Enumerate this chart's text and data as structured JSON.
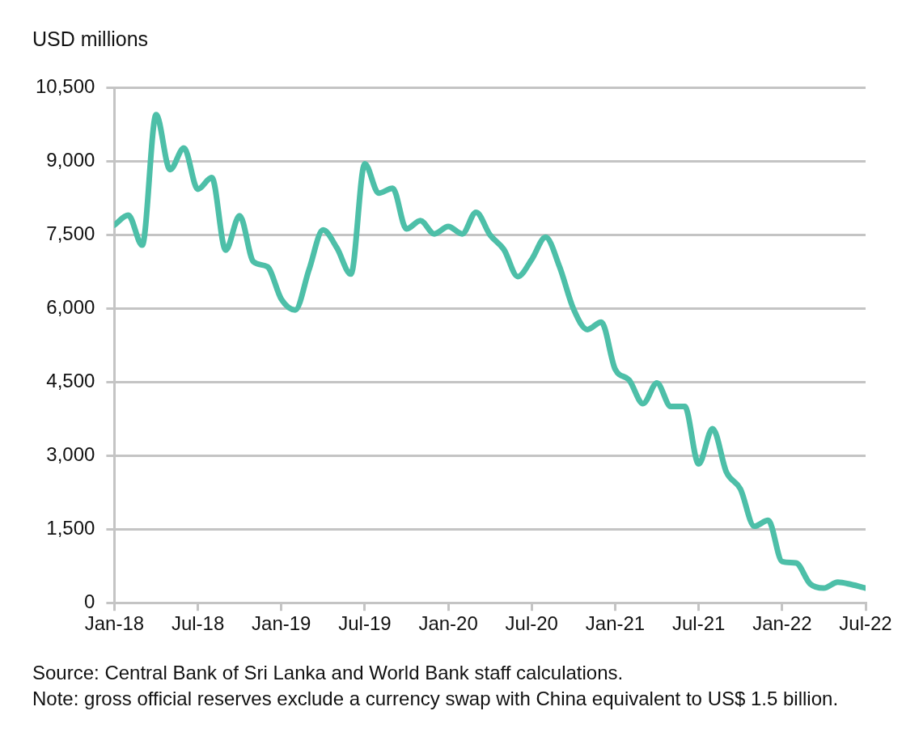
{
  "chart_data": {
    "type": "line",
    "ylabel": "USD millions",
    "x": [
      "2018-01",
      "2018-02",
      "2018-03",
      "2018-04",
      "2018-05",
      "2018-06",
      "2018-07",
      "2018-08",
      "2018-09",
      "2018-10",
      "2018-11",
      "2018-12",
      "2019-01",
      "2019-02",
      "2019-03",
      "2019-04",
      "2019-05",
      "2019-06",
      "2019-07",
      "2019-08",
      "2019-09",
      "2019-10",
      "2019-11",
      "2019-12",
      "2020-01",
      "2020-02",
      "2020-03",
      "2020-04",
      "2020-05",
      "2020-06",
      "2020-07",
      "2020-08",
      "2020-09",
      "2020-10",
      "2020-11",
      "2020-12",
      "2021-01",
      "2021-02",
      "2021-03",
      "2021-04",
      "2021-05",
      "2021-06",
      "2021-07",
      "2021-08",
      "2021-09",
      "2021-10",
      "2021-11",
      "2021-12",
      "2022-01",
      "2022-02",
      "2022-03",
      "2022-04",
      "2022-05",
      "2022-06",
      "2022-07"
    ],
    "series": [
      {
        "color": "#4dbfa8",
        "values": [
          7700,
          7900,
          7290,
          9950,
          8830,
          9270,
          8430,
          8670,
          7190,
          7890,
          6950,
          6850,
          6190,
          5970,
          6800,
          7600,
          7230,
          6700,
          8950,
          8350,
          8450,
          7620,
          7790,
          7520,
          7670,
          7520,
          7960,
          7500,
          7200,
          6650,
          7000,
          7450,
          6850,
          5990,
          5570,
          5720,
          4760,
          4540,
          4060,
          4480,
          4000,
          4000,
          2830,
          3550,
          2660,
          2320,
          1560,
          1680,
          840,
          810,
          390,
          300,
          420,
          370,
          300
        ]
      }
    ],
    "xlim": [
      "2018-01",
      "2022-07"
    ],
    "xticks": [
      {
        "value": "2018-01",
        "label": "Jan-18"
      },
      {
        "value": "2018-07",
        "label": "Jul-18"
      },
      {
        "value": "2019-01",
        "label": "Jan-19"
      },
      {
        "value": "2019-07",
        "label": "Jul-19"
      },
      {
        "value": "2020-01",
        "label": "Jan-20"
      },
      {
        "value": "2020-07",
        "label": "Jul-20"
      },
      {
        "value": "2021-01",
        "label": "Jan-21"
      },
      {
        "value": "2021-07",
        "label": "Jul-21"
      },
      {
        "value": "2022-01",
        "label": "Jan-22"
      },
      {
        "value": "2022-07",
        "label": "Jul-22"
      }
    ],
    "ylim": [
      0,
      10500
    ],
    "yticks": [
      {
        "value": 0,
        "label": "0"
      },
      {
        "value": 1500,
        "label": "1,500"
      },
      {
        "value": 3000,
        "label": "3,000"
      },
      {
        "value": 4500,
        "label": "4,500"
      },
      {
        "value": 6000,
        "label": "6,000"
      },
      {
        "value": 7500,
        "label": "7,500"
      },
      {
        "value": 9000,
        "label": "9,000"
      },
      {
        "value": 10500,
        "label": "10,500"
      }
    ],
    "grid": "y",
    "marker": "none",
    "line_style": "solid",
    "annotations": [
      "Source: Central Bank of Sri Lanka and World Bank staff calculations.",
      "Note: gross official reserves exclude a currency swap with China equivalent to US$ 1.5 billion."
    ]
  }
}
